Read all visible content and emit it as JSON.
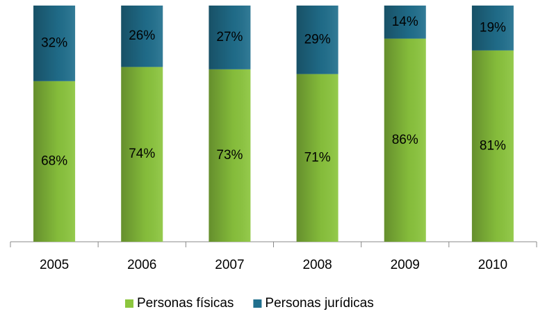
{
  "chart_data": {
    "type": "stacked_bar",
    "categories": [
      "2005",
      "2006",
      "2007",
      "2008",
      "2009",
      "2010"
    ],
    "ylim": [
      0,
      100
    ],
    "series": [
      {
        "name": "Personas físicas",
        "color": "#8cc63e",
        "values": [
          68,
          74,
          73,
          71,
          86,
          81
        ],
        "value_labels": [
          "68%",
          "74%",
          "73%",
          "71%",
          "86%",
          "81%"
        ]
      },
      {
        "name": "Personas jurídicas",
        "color": "#21708e",
        "values": [
          32,
          26,
          27,
          29,
          14,
          19
        ],
        "value_labels": [
          "32%",
          "26%",
          "27%",
          "29%",
          "14%",
          "19%"
        ]
      }
    ],
    "legend": "bottom"
  }
}
